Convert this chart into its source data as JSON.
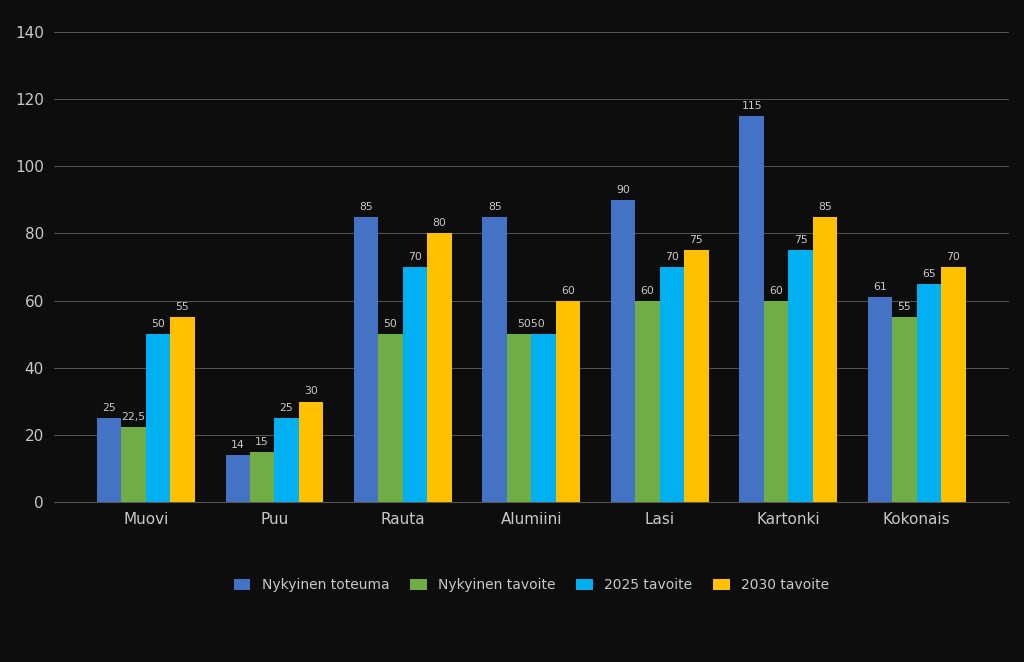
{
  "categories": [
    "Muovi",
    "Puu",
    "Rauta",
    "Alumiini",
    "Lasi",
    "Kartonki",
    "Kokonais"
  ],
  "series": {
    "Nykyinen toteuma": [
      25,
      14,
      85,
      85,
      90,
      115,
      61
    ],
    "Nykyinen tavoite": [
      22.5,
      15,
      50,
      50,
      60,
      60,
      55
    ],
    "2025 tavoite": [
      50,
      25,
      70,
      50,
      70,
      75,
      65
    ],
    "2030 tavoite": [
      55,
      30,
      80,
      60,
      75,
      85,
      70
    ]
  },
  "bar_colors": {
    "Nykyinen toteuma": "#4472c4",
    "Nykyinen tavoite": "#70ad47",
    "2025 tavoite": "#00b0f0",
    "2030 tavoite": "#ffc000"
  },
  "ylim": [
    0,
    145
  ],
  "yticks": [
    0,
    20,
    40,
    60,
    80,
    100,
    120,
    140
  ],
  "background_color": "#0d0d0d",
  "plot_bg_color": "#0d0d0d",
  "grid_color": "#555555",
  "text_color": "#c8c8c8",
  "bar_width": 0.19,
  "legend_labels": [
    "Nykyinen toteuma",
    "Nykyinen tavoite",
    "2025 tavoite",
    "2030 tavoite"
  ],
  "value_label_display": {
    "Nykyinen toteuma": [
      "25",
      "14",
      "85",
      "85",
      "90",
      "115",
      "61"
    ],
    "Nykyinen tavoite": [
      "22,5",
      "15",
      "50",
      "",
      "60",
      "60",
      "55"
    ],
    "2025 tavoite": [
      "50",
      "25",
      "70",
      "5050",
      "70",
      "75",
      "65"
    ],
    "2030 tavoite": [
      "55",
      "30",
      "80",
      "60",
      "75",
      "85",
      "70"
    ]
  }
}
